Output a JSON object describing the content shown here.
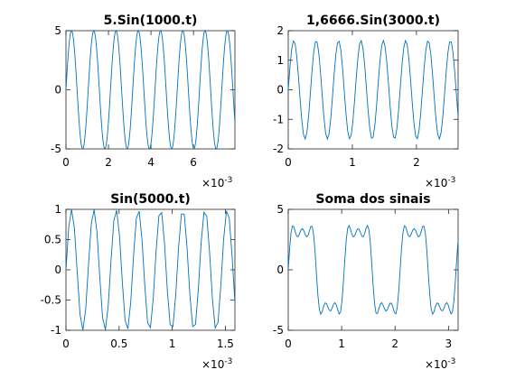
{
  "chart_data": [
    {
      "type": "line",
      "title": "5.Sin(1000.t)",
      "xlabel": "",
      "ylabel": "",
      "xlim": [
        0,
        0.00795
      ],
      "ylim": [
        -5,
        5
      ],
      "x_ticks": [
        0,
        0.002,
        0.004,
        0.006
      ],
      "x_tick_labels": [
        "0",
        "2",
        "4",
        "6"
      ],
      "x_exponent": "×10",
      "x_exponent_power": "-3",
      "y_ticks": [
        -5,
        0,
        5
      ],
      "y_tick_labels": [
        "-5",
        "0",
        "5"
      ],
      "series": [
        {
          "color": "#0072BD",
          "function": "sum_of_sines",
          "terms": [
            {
              "amplitude": 5,
              "angular_frequency": 6000
            }
          ],
          "x_start": 0,
          "x_end": 0.00795,
          "sample_step": 2.65e-05
        }
      ]
    },
    {
      "type": "line",
      "title": "1,6666.Sin(3000.t)",
      "xlabel": "",
      "ylabel": "",
      "xlim": [
        0,
        0.00265
      ],
      "ylim": [
        -2,
        2
      ],
      "x_ticks": [
        0,
        0.001,
        0.002
      ],
      "x_tick_labels": [
        "0",
        "1",
        "2"
      ],
      "x_exponent": "×10",
      "x_exponent_power": "-3",
      "y_ticks": [
        -2,
        -1,
        0,
        1,
        2
      ],
      "y_tick_labels": [
        "-2",
        "-1",
        "0",
        "1",
        "2"
      ],
      "series": [
        {
          "color": "#0072BD",
          "function": "sum_of_sines",
          "terms": [
            {
              "amplitude": 1.6666,
              "angular_frequency": 18000
            }
          ],
          "x_start": 0,
          "x_end": 0.00265,
          "sample_step": 2.65e-05
        }
      ]
    },
    {
      "type": "line",
      "title": "Sin(5000.t)",
      "xlabel": "",
      "ylabel": "",
      "xlim": [
        0,
        0.00159
      ],
      "ylim": [
        -1,
        1
      ],
      "x_ticks": [
        0,
        0.0005,
        0.001,
        0.0015
      ],
      "x_tick_labels": [
        "0",
        "0.5",
        "1",
        "1.5"
      ],
      "x_exponent": "×10",
      "x_exponent_power": "-3",
      "y_ticks": [
        -1,
        -0.5,
        0,
        0.5,
        1
      ],
      "y_tick_labels": [
        "-1",
        "-0.5",
        "0",
        "0.5",
        "1"
      ],
      "series": [
        {
          "color": "#0072BD",
          "function": "sum_of_sines",
          "terms": [
            {
              "amplitude": 1,
              "angular_frequency": 30000
            }
          ],
          "x_start": 0,
          "x_end": 0.00159,
          "sample_step": 2.65e-05
        }
      ]
    },
    {
      "type": "line",
      "title": "Soma dos sinais",
      "xlabel": "",
      "ylabel": "",
      "xlim": [
        0,
        0.00318
      ],
      "ylim": [
        -5,
        5
      ],
      "x_ticks": [
        0,
        0.001,
        0.002,
        0.003
      ],
      "x_tick_labels": [
        "0",
        "1",
        "2",
        "3"
      ],
      "x_exponent": "×10",
      "x_exponent_power": "-3",
      "y_ticks": [
        -5,
        0,
        5
      ],
      "y_tick_labels": [
        "-5",
        "0",
        "5"
      ],
      "series": [
        {
          "color": "#0072BD",
          "function": "sum_of_sines",
          "terms": [
            {
              "amplitude": 3.93,
              "angular_frequency": 6000
            },
            {
              "amplitude": 1.31,
              "angular_frequency": 18000
            },
            {
              "amplitude": 0.79,
              "angular_frequency": 30000
            }
          ],
          "x_start": 0,
          "x_end": 0.00318,
          "sample_step": 2.65e-05
        }
      ]
    }
  ]
}
